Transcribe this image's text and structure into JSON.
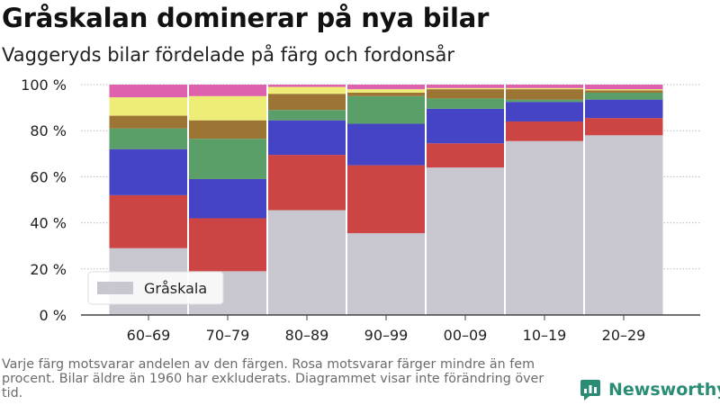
{
  "title": "Gråskalan dominerar på nya bilar",
  "subtitle": "Vaggeryds bilar fördelade på färg och fordonsår",
  "footnote": "Varje färg motsvarar andelen av den färgen. Rosa motsvarar färger mindre än fem procent. Bilar äldre än 1960 har exkluderats. Diagrammet visar inte förändring över tid.",
  "brand": {
    "name": "Newsworthy",
    "icon": "newsworthy-logo-icon"
  },
  "chart_data": {
    "type": "bar",
    "stacked": true,
    "categories": [
      "60–69",
      "70–79",
      "80–89",
      "90–99",
      "00–09",
      "10–19",
      "20–29"
    ],
    "ylim": [
      0,
      100
    ],
    "yticks": [
      0,
      20,
      40,
      60,
      80,
      100
    ],
    "ytick_labels": [
      "0 %",
      "20 %",
      "40 %",
      "60 %",
      "80 %",
      "100 %"
    ],
    "grid": "horizontal",
    "legend": {
      "position": "bottom-left",
      "entries": [
        "Gråskala"
      ]
    },
    "series": [
      {
        "name": "Gråskala",
        "color": "#c8c7cf",
        "values": [
          29,
          19,
          45.5,
          35.5,
          64,
          75.5,
          78
        ]
      },
      {
        "color": "#cc4444",
        "values": [
          23,
          23,
          24,
          29.5,
          10.5,
          8.5,
          7.5
        ]
      },
      {
        "color": "#4444c4",
        "values": [
          20,
          17,
          15,
          18,
          15,
          8.5,
          8
        ]
      },
      {
        "color": "#5a9e68",
        "values": [
          9,
          17.5,
          4.5,
          12,
          4.5,
          1,
          3
        ]
      },
      {
        "color": "#9c7434",
        "values": [
          5.5,
          8,
          7,
          1.5,
          4,
          4.5,
          1
        ]
      },
      {
        "color": "#eded78",
        "values": [
          8,
          10.5,
          3,
          1.5,
          0.5,
          0.5,
          0.5
        ]
      },
      {
        "color": "#dd61ad",
        "values": [
          5.5,
          5,
          1,
          2,
          1.5,
          1.5,
          2
        ]
      }
    ]
  }
}
